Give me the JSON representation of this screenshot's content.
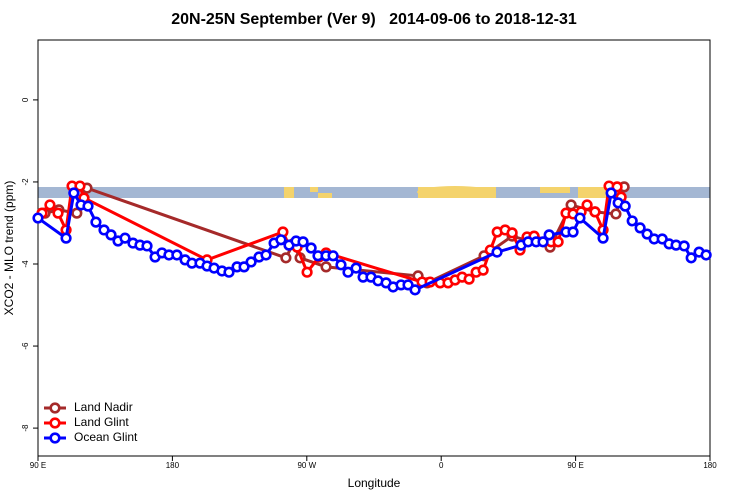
{
  "chart_data": {
    "type": "line",
    "title": "20N-25N September (Ver 9)   2014-09-06 to 2018-12-31",
    "x_label": "Longitude",
    "y_label": "XCO2 - MLO trend (ppm)",
    "xlim": [
      90,
      540
    ],
    "ylim": [
      1.46,
      -8.68
    ],
    "xticks": [
      {
        "value": 90,
        "label": "90 E"
      },
      180,
      {
        "value": 270,
        "label": "90 W"
      },
      {
        "value": 360,
        "label": "0"
      },
      {
        "value": 450,
        "label": "90 E"
      },
      {
        "value": 540,
        "label": "180"
      }
    ],
    "yticks": [
      0,
      -2,
      -4,
      -6,
      -8
    ],
    "legend": "bottom-left",
    "series": [
      {
        "name": "Land Nadir",
        "color": "#a52a2a",
        "x": [
          94.7,
          104,
          116,
          122.8,
          256,
          260.8,
          265.5,
          282.9,
          344.5,
          350.5,
          388.7,
          407.5,
          432.9,
          447,
          463,
          477,
          482.5
        ],
        "values": [
          -2.76,
          -2.68,
          -2.76,
          -2.15,
          -3.85,
          -3.51,
          -3.85,
          -4.07,
          -4.29,
          -4.46,
          -3.8,
          -3.32,
          -3.59,
          -2.56,
          -2.73,
          -2.78,
          -2.12
        ]
      },
      {
        "name": "Land Glint",
        "color": "#ff0000",
        "x": [
          92.7,
          98,
          103.4,
          108.8,
          112.8,
          118.1,
          120.8,
          203.2,
          254,
          258.1,
          263.5,
          270.2,
          278.2,
          282.9,
          347.2,
          352.6,
          359.3,
          364.6,
          369.3,
          374,
          378.7,
          383.4,
          388.1,
          392.9,
          397.5,
          402.8,
          407.5,
          412.8,
          417.5,
          422.2,
          433.6,
          438.3,
          443.6,
          448.3,
          453.7,
          457.7,
          463,
          468.4,
          472.4,
          477.8,
          480.5
        ],
        "values": [
          -2.76,
          -2.56,
          -2.76,
          -3.17,
          -2.1,
          -2.1,
          -2.39,
          -3.9,
          -3.22,
          -3.54,
          -3.59,
          -4.2,
          -3.83,
          -3.73,
          -4.44,
          -4.44,
          -4.46,
          -4.46,
          -4.39,
          -4.32,
          -4.37,
          -4.2,
          -4.15,
          -3.66,
          -3.22,
          -3.17,
          -3.24,
          -3.66,
          -3.34,
          -3.32,
          -3.46,
          -3.46,
          -2.76,
          -2.78,
          -2.73,
          -2.56,
          -2.73,
          -3.17,
          -2.1,
          -2.12,
          -2.37
        ]
      },
      {
        "name": "Ocean Glint",
        "color": "#0000ff",
        "x": [
          90,
          108.8,
          114,
          118.8,
          123.5,
          128.8,
          134.2,
          138.9,
          143.6,
          148.3,
          153.6,
          158.3,
          163,
          168.4,
          173,
          177.7,
          183,
          188.5,
          193.1,
          198.5,
          203.2,
          207.9,
          213.2,
          217.9,
          223.3,
          228,
          232.7,
          238,
          242.7,
          248.1,
          252.7,
          258.1,
          262.8,
          267.5,
          272.9,
          277.5,
          282.9,
          287.6,
          292.9,
          297.6,
          303,
          307.7,
          313,
          317.7,
          323.1,
          327.8,
          333.1,
          337.8,
          342.5,
          397.4,
          413.5,
          418.2,
          423.6,
          428.2,
          432.3,
          443.6,
          448.3,
          452.9,
          468.4,
          473.8,
          478.5,
          483.2,
          487.9,
          493.2,
          497.9,
          502.6,
          508,
          512.6,
          517.3,
          522.7,
          527.4,
          532.7,
          537.4
        ],
        "values": [
          -2.88,
          -3.37,
          -2.27,
          -2.56,
          -2.59,
          -2.98,
          -3.17,
          -3.29,
          -3.44,
          -3.37,
          -3.49,
          -3.54,
          -3.56,
          -3.83,
          -3.73,
          -3.78,
          -3.78,
          -3.9,
          -3.98,
          -3.98,
          -4.05,
          -4.1,
          -4.17,
          -4.2,
          -4.07,
          -4.07,
          -3.95,
          -3.83,
          -3.78,
          -3.49,
          -3.41,
          -3.54,
          -3.44,
          -3.46,
          -3.61,
          -3.8,
          -3.8,
          -3.8,
          -4.02,
          -4.2,
          -4.1,
          -4.32,
          -4.32,
          -4.41,
          -4.46,
          -4.56,
          -4.51,
          -4.51,
          -4.63,
          -3.71,
          -3.54,
          -3.46,
          -3.46,
          -3.46,
          -3.29,
          -3.22,
          -3.22,
          -2.88,
          -3.37,
          -2.27,
          -2.51,
          -2.59,
          -2.95,
          -3.12,
          -3.27,
          -3.39,
          -3.39,
          -3.51,
          -3.54,
          -3.56,
          -3.85,
          -3.71,
          -3.78
        ]
      }
    ]
  }
}
